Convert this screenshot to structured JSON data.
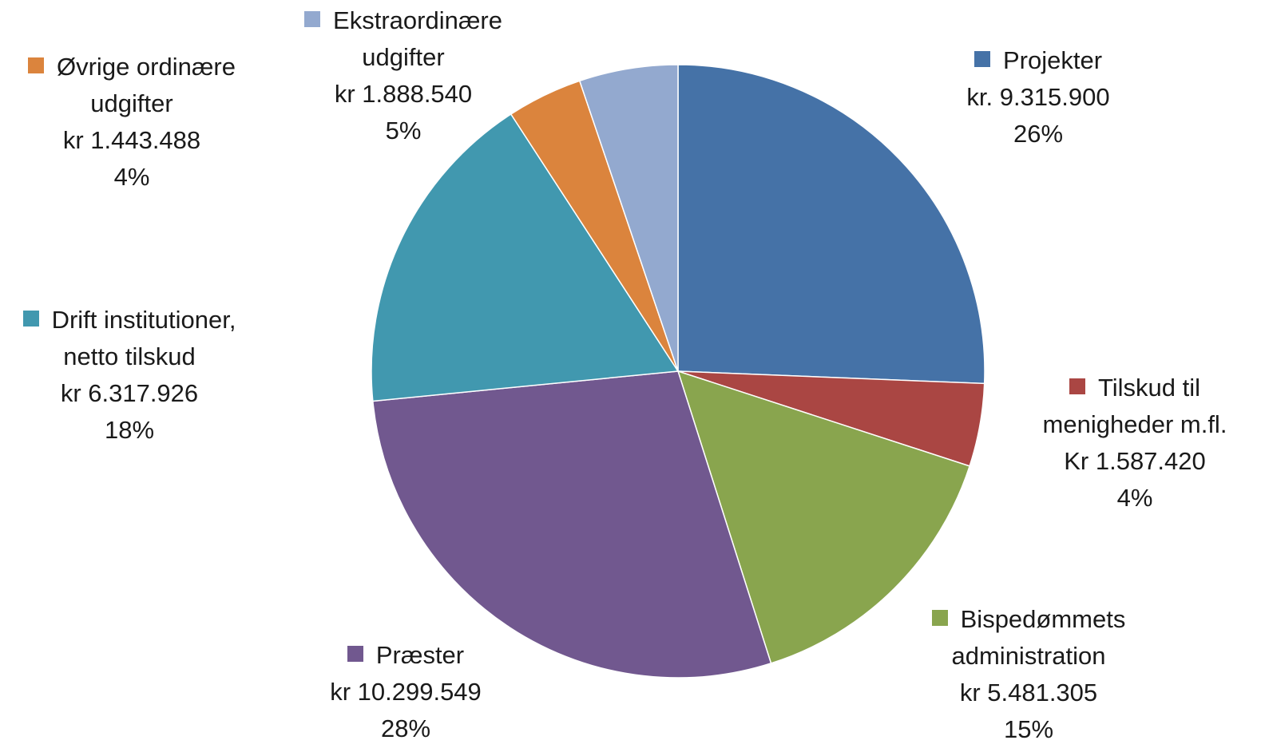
{
  "chart_data": {
    "type": "pie",
    "start_angle_deg": 0,
    "direction": "clockwise",
    "slices": [
      {
        "name": "Projekter",
        "name_lines": [
          "Projekter"
        ],
        "amount": "kr. 9.315.900",
        "value": 9315900,
        "percent": "26%",
        "color": "#4572A7"
      },
      {
        "name": "Tilskud til menigheder m.fl.",
        "name_lines": [
          "Tilskud til",
          "menigheder m.fl."
        ],
        "amount": "Kr 1.587.420",
        "value": 1587420,
        "percent": "4%",
        "color": "#AA4643"
      },
      {
        "name": "Bispedømmets administration",
        "name_lines": [
          "Bispedømmets",
          "administration"
        ],
        "amount": "kr 5.481.305",
        "value": 5481305,
        "percent": "15%",
        "color": "#89A54E"
      },
      {
        "name": "Præster",
        "name_lines": [
          "Præster"
        ],
        "amount": "kr 10.299.549",
        "value": 10299549,
        "percent": "28%",
        "color": "#71588F"
      },
      {
        "name": "Drift institutioner, netto tilskud",
        "name_lines": [
          "Drift institutioner,",
          "netto tilskud"
        ],
        "amount": "kr 6.317.926",
        "value": 6317926,
        "percent": "18%",
        "color": "#4198AF"
      },
      {
        "name": "Øvrige ordinære udgifter",
        "name_lines": [
          "Øvrige ordinære",
          "udgifter"
        ],
        "amount": "kr 1.443.488",
        "value": 1443488,
        "percent": "4%",
        "color": "#DB843D"
      },
      {
        "name": "Ekstraordinære udgifter",
        "name_lines": [
          "Ekstraordinære",
          "udgifter"
        ],
        "amount": "kr 1.888.540",
        "value": 1888540,
        "percent": "5%",
        "color": "#93A9CF"
      }
    ]
  }
}
